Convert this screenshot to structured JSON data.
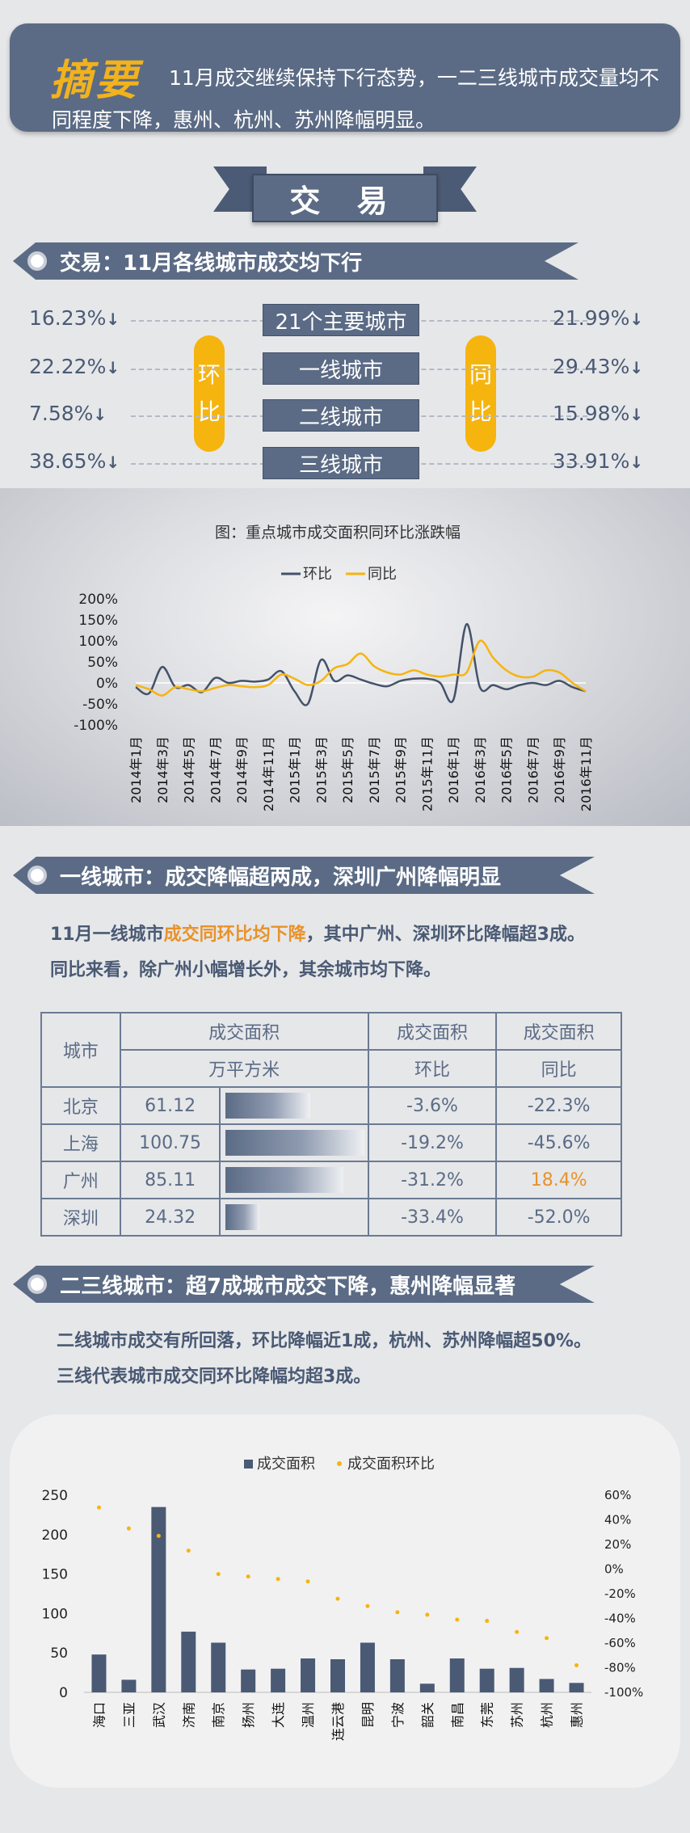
{
  "summary": {
    "title": "摘要",
    "text": "11月成交继续保持下行态势，一二三线城市成交量均不同程度下降，惠州、杭州、苏州降幅明显。"
  },
  "banner": {
    "label": "交 易"
  },
  "section1": {
    "title": "交易：11月各线城市成交均下行",
    "left_oval": "环比",
    "right_oval": "同比",
    "rows": [
      {
        "category": "21个主要城市",
        "mom": "16.23%",
        "yoy": "21.99%"
      },
      {
        "category": "一线城市",
        "mom": "22.22%",
        "yoy": "29.43%"
      },
      {
        "category": "二线城市",
        "mom": "7.58%",
        "yoy": "15.98%"
      },
      {
        "category": "三线城市",
        "mom": "38.65%",
        "yoy": "33.91%"
      }
    ],
    "down_arrow": "↓"
  },
  "section2": {
    "title": "一线城市：成交降幅超两成，深圳广州降幅明显",
    "para_part1": "11月一线城市",
    "para_highlight": "成交同环比均下降",
    "para_part2": "，其中广州、深圳环比降幅超3成。",
    "para_line2": "同比来看，除广州小幅增长外，其余城市均下降。",
    "table": {
      "h_city": "城市",
      "h_area": "成交面积",
      "h_unit": "万平方米",
      "h_area2": "成交面积",
      "h_mom": "环比",
      "h_area3": "成交面积",
      "h_yoy": "同比",
      "rows": [
        {
          "city": "北京",
          "area": "61.12",
          "area_value": 61.12,
          "mom": "-3.6%",
          "yoy": "-22.3%"
        },
        {
          "city": "上海",
          "area": "100.75",
          "area_value": 100.75,
          "mom": "-19.2%",
          "yoy": "-45.6%"
        },
        {
          "city": "广州",
          "area": "85.11",
          "area_value": 85.11,
          "mom": "-31.2%",
          "yoy": "18.4%"
        },
        {
          "city": "深圳",
          "area": "24.32",
          "area_value": 24.32,
          "mom": "-33.4%",
          "yoy": "-52.0%"
        }
      ]
    }
  },
  "section3": {
    "title": "二三线城市：超7成城市成交下降，惠州降幅显著",
    "para_line1": "二线城市成交有所回落，环比降幅近1成，杭州、苏州降幅超50%。",
    "para_line2": "三线代表城市成交同环比降幅均超3成。"
  },
  "colors": {
    "navy": "#4a5a74",
    "orange": "#f6b40f",
    "highlight": "#e8922a"
  },
  "chart_data": [
    {
      "type": "line",
      "title": "图：重点城市成交面积同环比涨跌幅",
      "categories": [
        "2014年1月",
        "2014年2月",
        "2014年3月",
        "2014年4月",
        "2014年5月",
        "2014年6月",
        "2014年7月",
        "2014年8月",
        "2014年9月",
        "2014年10月",
        "2014年11月",
        "2014年12月",
        "2015年1月",
        "2015年2月",
        "2015年3月",
        "2015年4月",
        "2015年5月",
        "2015年6月",
        "2015年7月",
        "2015年8月",
        "2015年9月",
        "2015年10月",
        "2015年11月",
        "2015年12月",
        "2016年1月",
        "2016年2月",
        "2016年3月",
        "2016年4月",
        "2016年5月",
        "2016年6月",
        "2016年7月",
        "2016年8月",
        "2016年9月",
        "2016年10月",
        "2016年11月"
      ],
      "tick_labels": [
        "2014年1月",
        "2014年3月",
        "2014年5月",
        "2014年7月",
        "2014年9月",
        "2014年11月",
        "2015年1月",
        "2015年3月",
        "2015年5月",
        "2015年7月",
        "2015年9月",
        "2015年11月",
        "2016年1月",
        "2016年3月",
        "2016年5月",
        "2016年7月",
        "2016年9月",
        "2016年11月"
      ],
      "series": [
        {
          "name": "环比",
          "color": "#44526a",
          "values": [
            -10,
            -25,
            38,
            -10,
            -5,
            -22,
            12,
            0,
            5,
            3,
            8,
            28,
            -20,
            -50,
            55,
            5,
            18,
            8,
            -2,
            -8,
            5,
            10,
            10,
            0,
            -40,
            140,
            -10,
            -5,
            -15,
            -5,
            0,
            -5,
            5,
            -10,
            -20
          ]
        },
        {
          "name": "同比",
          "color": "#f6b40f",
          "values": [
            -5,
            -15,
            -30,
            -10,
            -15,
            -20,
            -12,
            -5,
            -8,
            -10,
            -5,
            20,
            10,
            -5,
            5,
            35,
            45,
            70,
            40,
            25,
            20,
            30,
            20,
            15,
            20,
            25,
            100,
            60,
            30,
            15,
            15,
            30,
            25,
            0,
            -20
          ]
        }
      ],
      "ylim": [
        -100,
        200
      ],
      "yticks": [
        "200%",
        "150%",
        "100%",
        "50%",
        "0%",
        "-50%",
        "-100%"
      ]
    },
    {
      "type": "bar",
      "categories": [
        "海口",
        "三亚",
        "武汉",
        "济南",
        "南京",
        "扬州",
        "大连",
        "温州",
        "连云港",
        "昆明",
        "宁波",
        "韶关",
        "南昌",
        "东莞",
        "苏州",
        "杭州",
        "惠州"
      ],
      "series": [
        {
          "name": "成交面积",
          "color": "#4a5a74",
          "axis": "left",
          "values": [
            48,
            16,
            235,
            77,
            63,
            29,
            30,
            43,
            42,
            63,
            42,
            11,
            43,
            30,
            31,
            17,
            12
          ]
        },
        {
          "name": "成交面积环比",
          "color": "#f6b40f",
          "axis": "right",
          "type": "scatter",
          "values": [
            50,
            33,
            27,
            15,
            -4,
            -6,
            -8,
            -10,
            -24,
            -30,
            -35,
            -37,
            -41,
            -42,
            -51,
            -56,
            -78
          ]
        }
      ],
      "ylim_left": [
        0,
        250
      ],
      "ylim_right": [
        -100,
        60
      ],
      "yticks_left": [
        "250",
        "200",
        "150",
        "100",
        "50",
        "0"
      ],
      "yticks_right": [
        "60%",
        "40%",
        "20%",
        "0%",
        "-20%",
        "-40%",
        "-60%",
        "-80%",
        "-100%"
      ]
    }
  ]
}
